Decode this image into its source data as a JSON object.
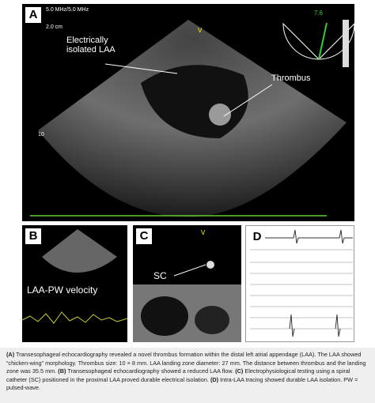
{
  "panels": {
    "a": {
      "label": "A",
      "header": [
        "5.0 MHz/5.0 MHz",
        "2.0 cm"
      ],
      "angle": "7.6",
      "marker": "V",
      "depth": "10",
      "annotations": [
        "Electrically isolated LAA",
        "Thrombus"
      ]
    },
    "b": {
      "label": "B",
      "annotation": "LAA-PW velocity"
    },
    "c": {
      "label": "C",
      "annotation": "SC",
      "marker": "V"
    },
    "d": {
      "label": "D"
    }
  },
  "caption": [
    {
      "label": "(A)",
      "text": " Transesophageal echocardiography revealed a novel thrombus formation within the distal left atrial appendage (LAA). The LAA showed “chicken-wing” morphology. Thrombus size: 10 × 8 mm. LAA landing zone diameter: 27 mm. The distance between thrombus and the landing zone was 35.5 mm. "
    },
    {
      "label": "(B)",
      "text": " Transesophageal echocardiography showed a reduced LAA flow. "
    },
    {
      "label": "(C)",
      "text": " Electrophysiological testing using a spiral catheter (SC) positioned in the proximal LAA proved durable electrical isolation. "
    },
    {
      "label": "(D)",
      "text": " Intra-LAA tracing showed durable LAA isolation. PW = pulsed-wave."
    }
  ]
}
